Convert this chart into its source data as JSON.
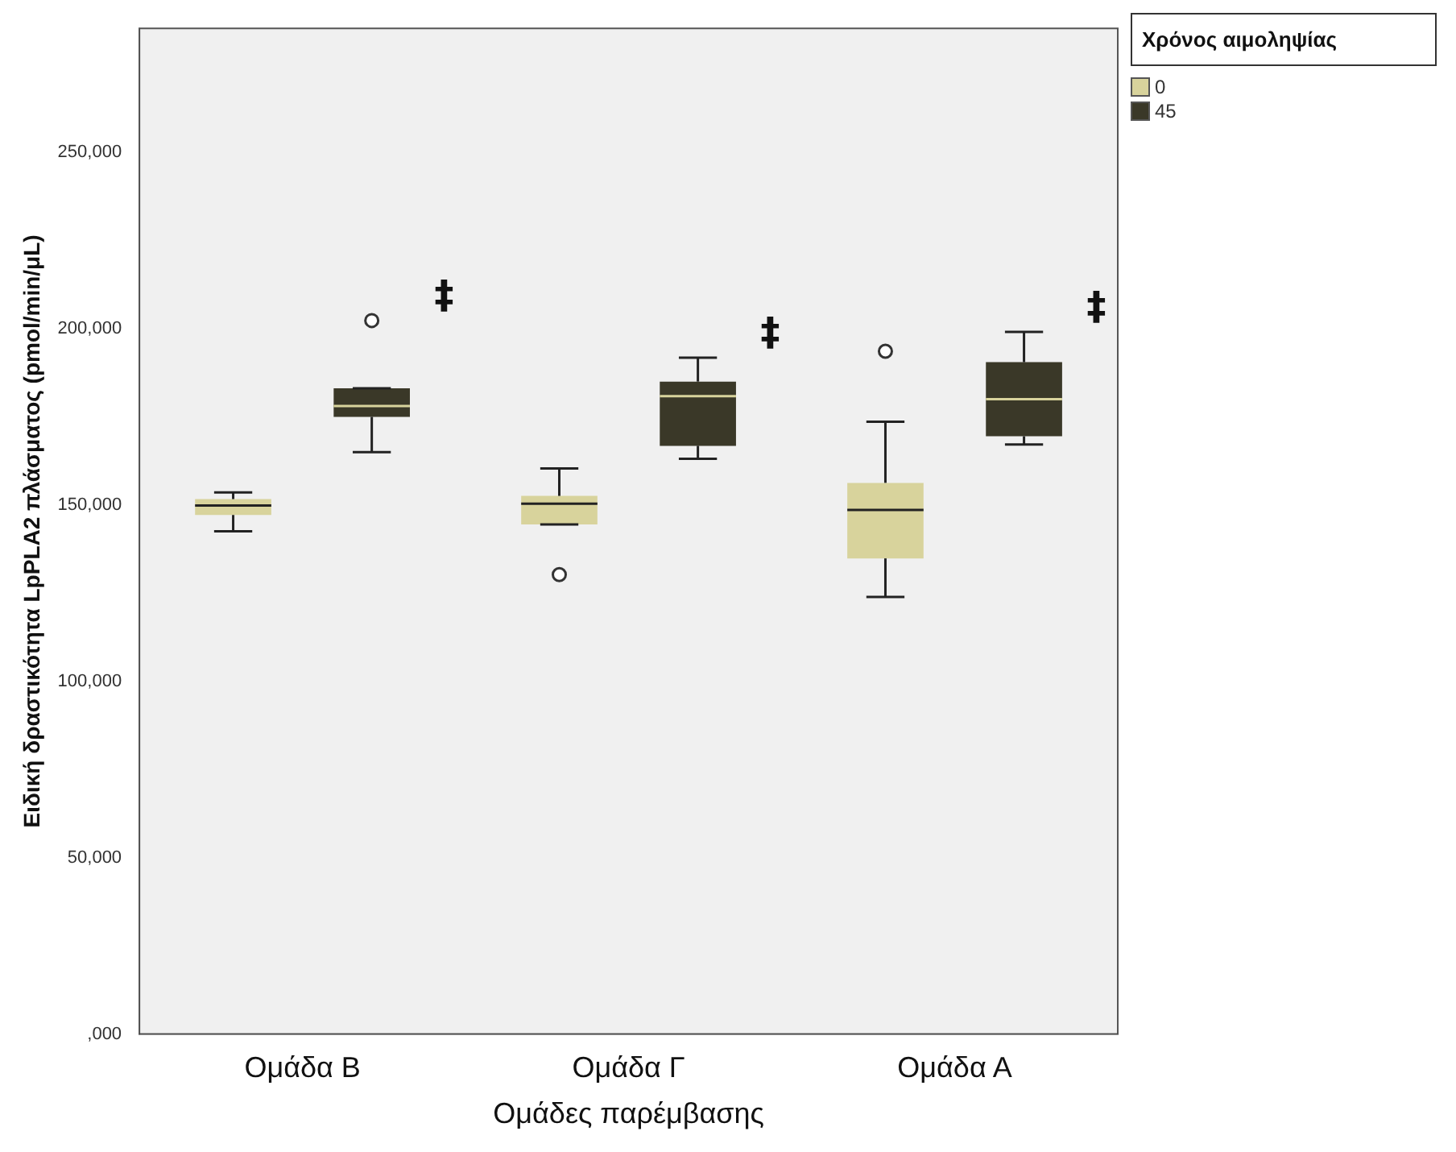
{
  "chart_data": {
    "type": "box",
    "xlabel": "Ομάδες παρέμβασης",
    "ylabel": "Ειδική δραστικότητα LpPLA2 πλάσματος (pmol/min/μL)",
    "legend_title": "Χρόνος αιμοληψίας",
    "legend": "top right",
    "grid": false,
    "categories": [
      "Ομάδα Β",
      "Ομάδα Γ",
      "Ομάδα Α"
    ],
    "ylim": [
      0,
      285000
    ],
    "yticks": [
      {
        "value": 0,
        "label": ",000"
      },
      {
        "value": 50000,
        "label": "50,000"
      },
      {
        "value": 100000,
        "label": "100,000"
      },
      {
        "value": 150000,
        "label": "150,000"
      },
      {
        "value": 200000,
        "label": "200,000"
      },
      {
        "value": 250000,
        "label": "250,000"
      }
    ],
    "series": [
      {
        "name": "0",
        "color": "#d8d39c",
        "boxes": [
          {
            "low": 142500,
            "q1": 147100,
            "median": 149800,
            "q3": 151600,
            "high": 153500
          },
          {
            "low": 144400,
            "q1": 144400,
            "median": 150300,
            "q3": 152500,
            "high": 160300,
            "outliers": [
              130200
            ]
          },
          {
            "low": 123900,
            "q1": 134800,
            "median": 148500,
            "q3": 156200,
            "high": 173500,
            "outliers": [
              193500
            ]
          }
        ]
      },
      {
        "name": "45",
        "color": "#3a3828",
        "boxes": [
          {
            "low": 164900,
            "q1": 174900,
            "median": 178000,
            "q3": 183000,
            "high": 183000,
            "outliers": [
              202200
            ]
          },
          {
            "low": 163000,
            "q1": 166700,
            "median": 180800,
            "q3": 184900,
            "high": 191700
          },
          {
            "low": 167100,
            "q1": 169400,
            "median": 179900,
            "q3": 190400,
            "high": 199000
          }
        ]
      }
    ],
    "annotations": [
      "‡",
      "‡",
      "‡"
    ]
  }
}
